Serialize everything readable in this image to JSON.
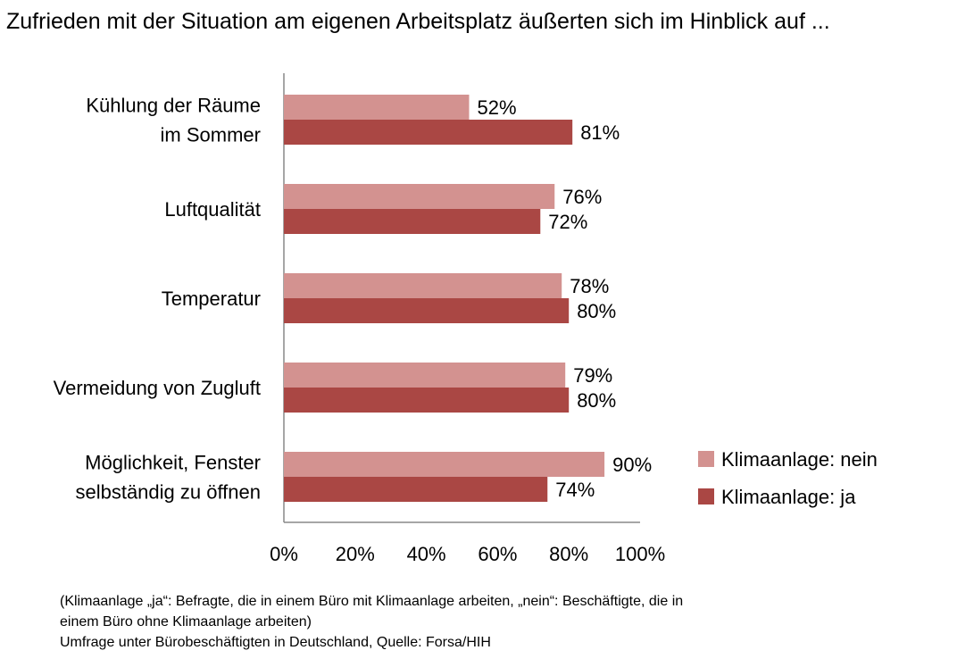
{
  "title": "Zufrieden mit der Situation am eigenen Arbeitsplatz äußerten sich im Hinblick auf ...",
  "chart_data": {
    "type": "bar",
    "orientation": "horizontal",
    "categories": [
      [
        "Kühlung der Räume",
        "im Sommer"
      ],
      [
        "Luftqualität"
      ],
      [
        "Temperatur"
      ],
      [
        "Vermeidung von Zugluft"
      ],
      [
        "Möglichkeit, Fenster",
        "selbständig zu öffnen"
      ]
    ],
    "series": [
      {
        "name": "Klimaanlage: nein",
        "color": "#D39290",
        "values": [
          52,
          76,
          78,
          79,
          90
        ]
      },
      {
        "name": "Klimaanlage: ja",
        "color": "#AA4744",
        "values": [
          81,
          72,
          80,
          80,
          74
        ]
      }
    ],
    "xlim": [
      0,
      100
    ],
    "xticks": [
      "0%",
      "20%",
      "40%",
      "60%",
      "80%",
      "100%"
    ],
    "legend_position": "right"
  },
  "footnote": [
    "(Klimaanlage „ja“: Befragte, die in einem Büro mit Klimaanlage arbeiten, „nein“: Beschäftigte, die in",
    "einem Büro ohne Klimaanlage arbeiten)",
    "Umfrage unter Bürobeschäftigten in Deutschland, Quelle: Forsa/HIH"
  ]
}
